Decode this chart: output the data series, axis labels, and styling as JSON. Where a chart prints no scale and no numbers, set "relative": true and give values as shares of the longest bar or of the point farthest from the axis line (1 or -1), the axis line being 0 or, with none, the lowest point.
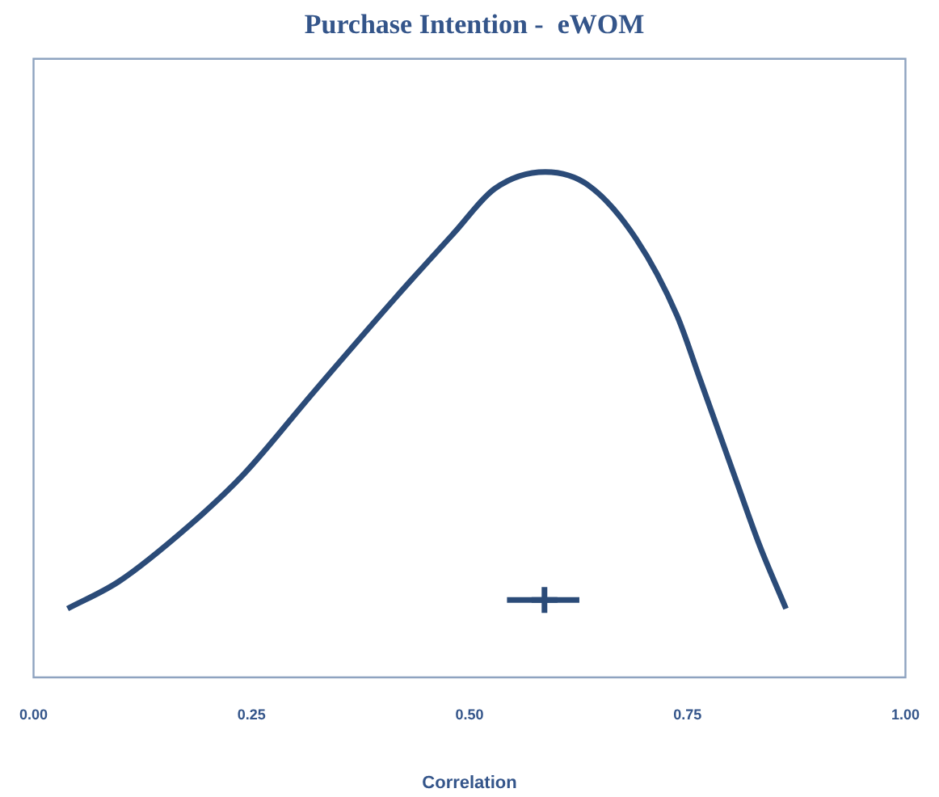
{
  "chart_data": {
    "type": "line",
    "title": "Purchase Intention -  eWOM",
    "xlabel": "Correlation",
    "relative": true,
    "xlim": [
      0,
      1
    ],
    "xticks": [
      {
        "value": 0,
        "label": "0.00"
      },
      {
        "value": 0.25,
        "label": "0.25"
      },
      {
        "value": 0.5,
        "label": "0.50"
      },
      {
        "value": 0.75,
        "label": "0.75"
      },
      {
        "value": 1,
        "label": "1.00"
      }
    ],
    "grid": false,
    "legend": false,
    "series": [
      {
        "type": "line",
        "color": "#2b4b78",
        "x": [
          0.039,
          0.098,
          0.179,
          0.24,
          0.321,
          0.415,
          0.482,
          0.529,
          0.587,
          0.637,
          0.691,
          0.738,
          0.765,
          0.806,
          0.833,
          0.863
        ],
        "values": [
          0.136,
          0.19,
          0.301,
          0.4,
          0.564,
          0.751,
          0.879,
          0.967,
          1,
          0.973,
          0.868,
          0.716,
          0.587,
          0.389,
          0.26,
          0.136
        ]
      },
      {
        "type": "scatter",
        "color": "#2b4b78",
        "x": [
          0.586
        ],
        "values": [
          0.153
        ],
        "marker": "cross",
        "xerrors": [
          [
            0.543,
            0.626
          ]
        ]
      }
    ]
  }
}
